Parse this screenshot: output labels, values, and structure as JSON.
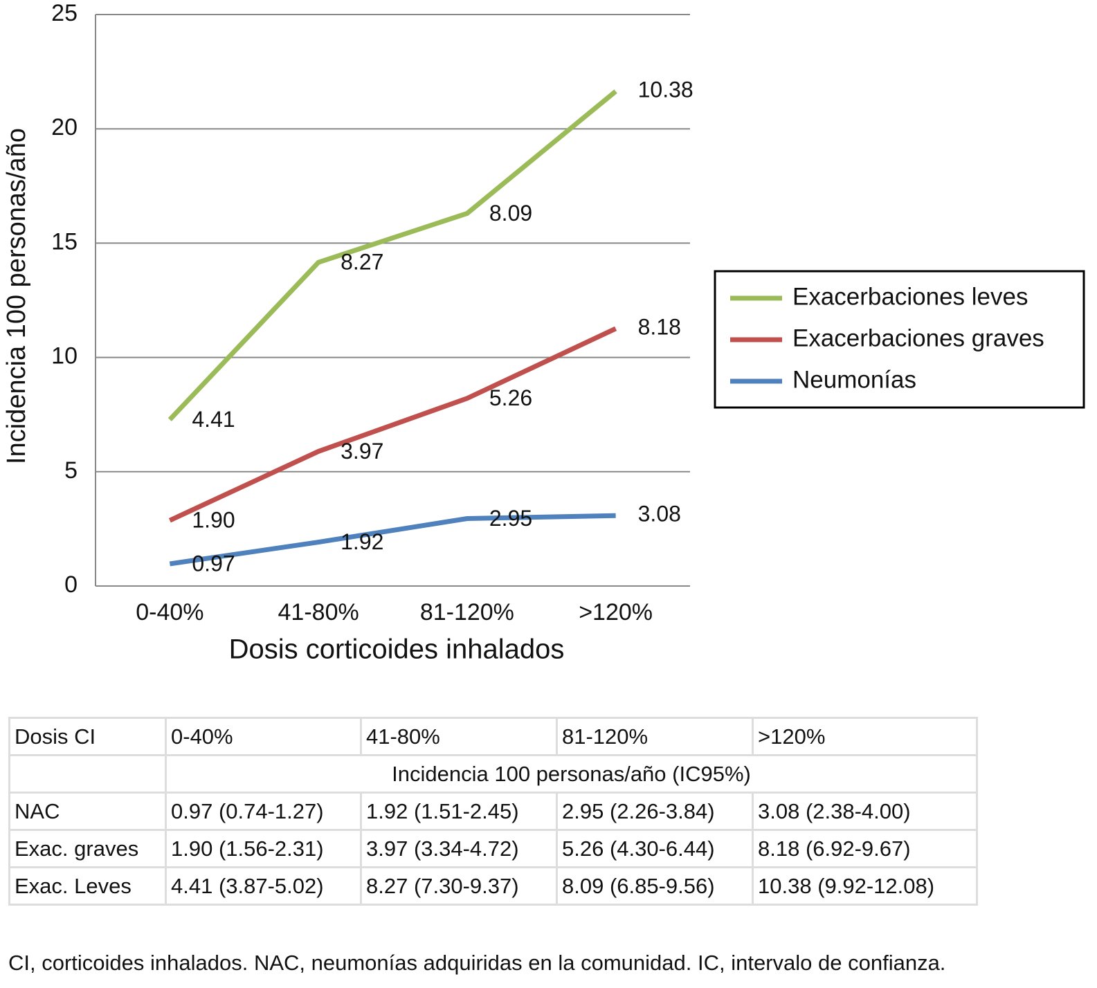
{
  "chart_data": {
    "type": "line",
    "stacked": true,
    "y_label": "Incidencia 100 personas/año",
    "x_label": "Dosis corticoides inhalados",
    "categories": [
      "0-40%",
      "41-80%",
      "81-120%",
      ">120%"
    ],
    "series": [
      {
        "name": "Neumonías",
        "color": "#4f81bd",
        "values": [
          0.97,
          1.92,
          2.95,
          3.08
        ],
        "value_labels": [
          "0.97",
          "1.92",
          "2.95",
          "3.08"
        ]
      },
      {
        "name": "Exacerbaciones graves",
        "color": "#c0504d",
        "values": [
          1.9,
          3.97,
          5.26,
          8.18
        ],
        "value_labels": [
          "1.90",
          "3.97",
          "5.26",
          "8.18"
        ]
      },
      {
        "name": "Exacerbaciones leves",
        "color": "#9bbb59",
        "values": [
          4.41,
          8.27,
          8.09,
          10.38
        ],
        "value_labels": [
          "4.41",
          "8.27",
          "8.09",
          "10.38"
        ]
      }
    ],
    "ylim": [
      0,
      25
    ],
    "yticks": [
      0,
      5,
      10,
      15,
      20,
      25
    ],
    "grid": true,
    "legend": "right"
  },
  "table": {
    "header": [
      "Dosis CI",
      "0-40%",
      "41-80%",
      "81-120%",
      ">120%"
    ],
    "subheader": "Incidencia 100 personas/año (IC95%)",
    "rows": [
      [
        "NAC",
        "0.97 (0.74-1.27)",
        "1.92 (1.51-2.45)",
        "2.95 (2.26-3.84)",
        "3.08 (2.38-4.00)"
      ],
      [
        "Exac. graves",
        "1.90 (1.56-2.31)",
        "3.97 (3.34-4.72)",
        "5.26 (4.30-6.44)",
        "8.18 (6.92-9.67)"
      ],
      [
        "Exac. Leves",
        "4.41 (3.87-5.02)",
        "8.27 (7.30-9.37)",
        "8.09 (6.85-9.56)",
        "10.38 (9.92-12.08)"
      ]
    ]
  },
  "footnote": "CI, corticoides inhalados. NAC, neumonías adquiridas en la comunidad. IC, intervalo de confianza."
}
